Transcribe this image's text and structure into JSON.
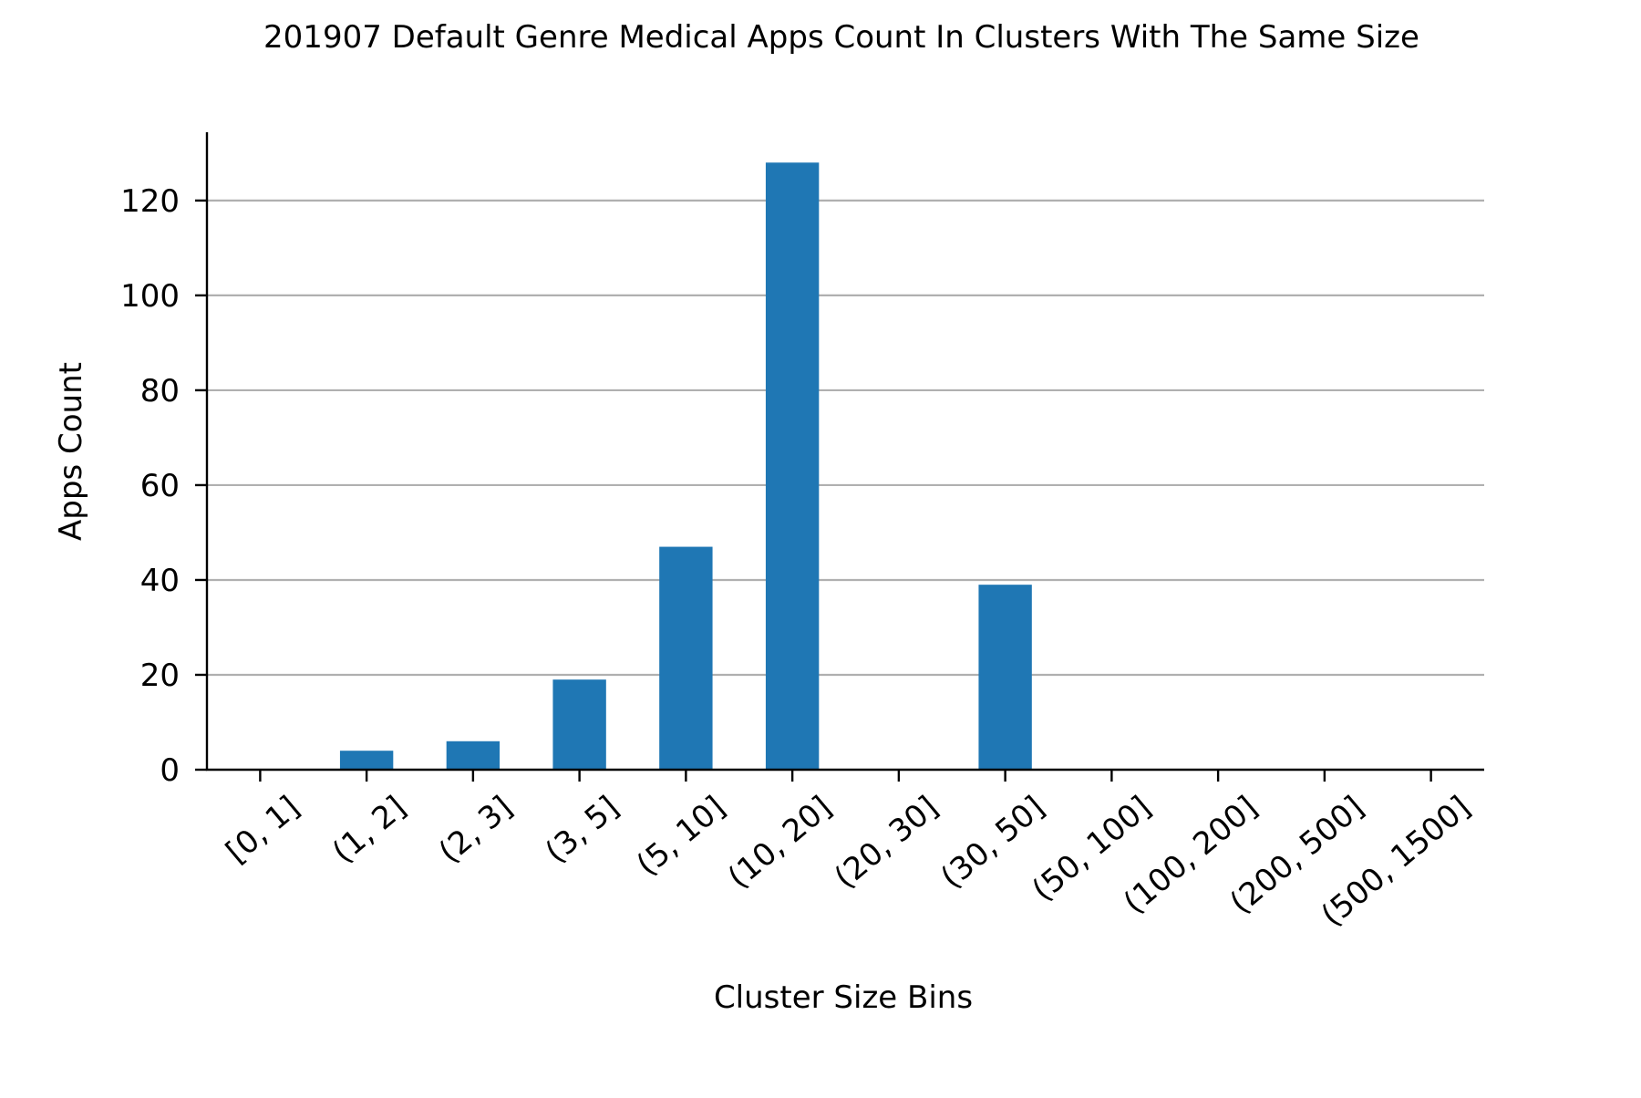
{
  "chart_data": {
    "type": "bar",
    "title": "201907 Default Genre Medical Apps Count In Clusters With The Same Size",
    "xlabel": "Cluster Size Bins",
    "ylabel": "Apps Count",
    "categories": [
      "[0, 1]",
      "(1, 2]",
      "(2, 3]",
      "(3, 5]",
      "(5, 10]",
      "(10, 20]",
      "(20, 30]",
      "(30, 50]",
      "(50, 100]",
      "(100, 200]",
      "(200, 500]",
      "(500, 1500]"
    ],
    "values": [
      0,
      4,
      6,
      19,
      47,
      128,
      0,
      39,
      0,
      0,
      0,
      0
    ],
    "yticks": [
      0,
      20,
      40,
      60,
      80,
      100,
      120
    ],
    "ylim": [
      0,
      134.4
    ],
    "grid": "horizontal",
    "legend": "none",
    "colors": {
      "bar": "#1f77b4",
      "grid": "#b0b0b0",
      "axis": "#000000"
    }
  }
}
